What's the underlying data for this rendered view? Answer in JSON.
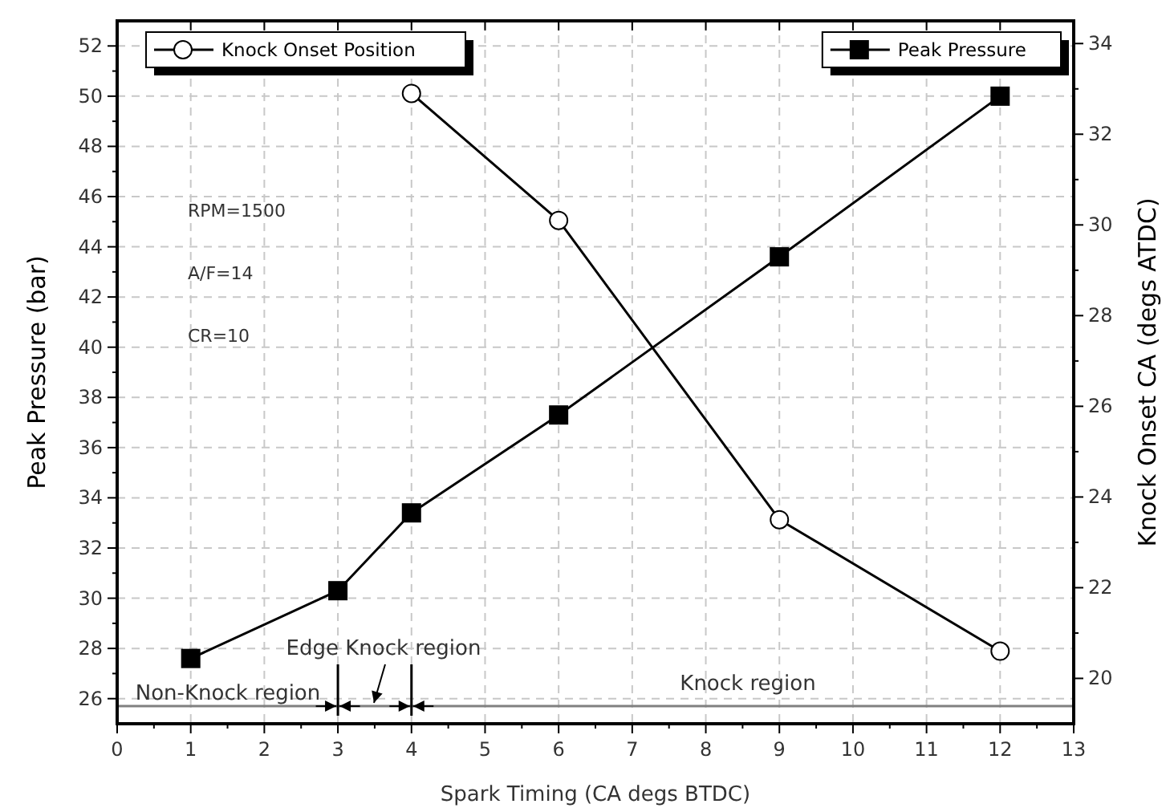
{
  "chart_data": {
    "type": "line",
    "xlabel": "Spark Timing (CA degs BTDC)",
    "ylabel": "Peak Pressure (bar)",
    "y2label": "Knock Onset CA (degs ATDC)",
    "x": [
      1,
      3,
      4,
      6,
      9,
      12
    ],
    "series": [
      {
        "name": "Peak Pressure",
        "color": "#000000",
        "marker": "square",
        "values": [
          27.6,
          30.3,
          33.4,
          37.3,
          43.6,
          50.0
        ]
      },
      {
        "name": "Knock Onset Position",
        "color": "#000000",
        "marker": "circle",
        "axis": "y2",
        "x": [
          4,
          6,
          9,
          12
        ],
        "values": [
          32.9,
          30.1,
          23.5,
          20.6
        ]
      }
    ],
    "xlim": [
      0,
      13
    ],
    "xticks": [
      0,
      1,
      2,
      3,
      4,
      5,
      6,
      7,
      8,
      9,
      10,
      11,
      12,
      13
    ],
    "ylim": [
      25,
      53
    ],
    "yticks": [
      26,
      28,
      30,
      32,
      34,
      36,
      38,
      40,
      42,
      44,
      46,
      48,
      50,
      52
    ],
    "y2lim": [
      19,
      34.5
    ],
    "y2ticks": [
      20,
      22,
      24,
      26,
      28,
      30,
      32,
      34
    ],
    "ref_lines": [
      {
        "axis": "y",
        "value": 25.7,
        "color": "#808080"
      }
    ],
    "annotations": [
      "RPM=1500",
      "A/F=14",
      "CR=10",
      "Non-Knock region",
      "Edge Knock region",
      "Knock region"
    ],
    "grid": true,
    "legend": "top",
    "line_style": "solid"
  }
}
